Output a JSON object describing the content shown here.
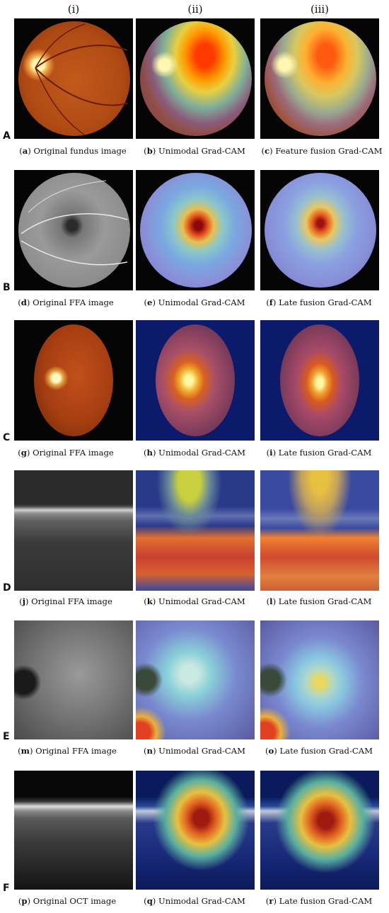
{
  "column_headers": [
    "(i)",
    "(ii)",
    "(iii)"
  ],
  "rows": [
    {
      "label": "A",
      "captions": [
        {
          "letter": "a",
          "text": "Original fundus image"
        },
        {
          "letter": "b",
          "text": "Unimodal Grad-CAM"
        },
        {
          "letter": "c",
          "text": "Feature fusion Grad-CAM"
        }
      ]
    },
    {
      "label": "B",
      "captions": [
        {
          "letter": "d",
          "text": "Original FFA image"
        },
        {
          "letter": "e",
          "text": "Unimodal Grad-CAM"
        },
        {
          "letter": "f",
          "text": "Late fusion Grad-CAM"
        }
      ]
    },
    {
      "label": "C",
      "captions": [
        {
          "letter": "g",
          "text": "Original FFA image"
        },
        {
          "letter": "h",
          "text": "Unimodal Grad-CAM"
        },
        {
          "letter": "i",
          "text": "Late fusion Grad-CAM"
        }
      ]
    },
    {
      "label": "D",
      "captions": [
        {
          "letter": "j",
          "text": "Original FFA image"
        },
        {
          "letter": "k",
          "text": "Unimodal Grad-CAM"
        },
        {
          "letter": "l",
          "text": "Late fusion Grad-CAM"
        }
      ]
    },
    {
      "label": "E",
      "captions": [
        {
          "letter": "m",
          "text": "Original FFA image"
        },
        {
          "letter": "n",
          "text": "Unimodal Grad-CAM"
        },
        {
          "letter": "o",
          "text": "Late fusion Grad-CAM"
        }
      ]
    },
    {
      "label": "F",
      "captions": [
        {
          "letter": "p",
          "text": "Original OCT image"
        },
        {
          "letter": "q",
          "text": "Unimodal Grad-CAM"
        },
        {
          "letter": "r",
          "text": "Late fusion Grad-CAM"
        }
      ]
    }
  ]
}
